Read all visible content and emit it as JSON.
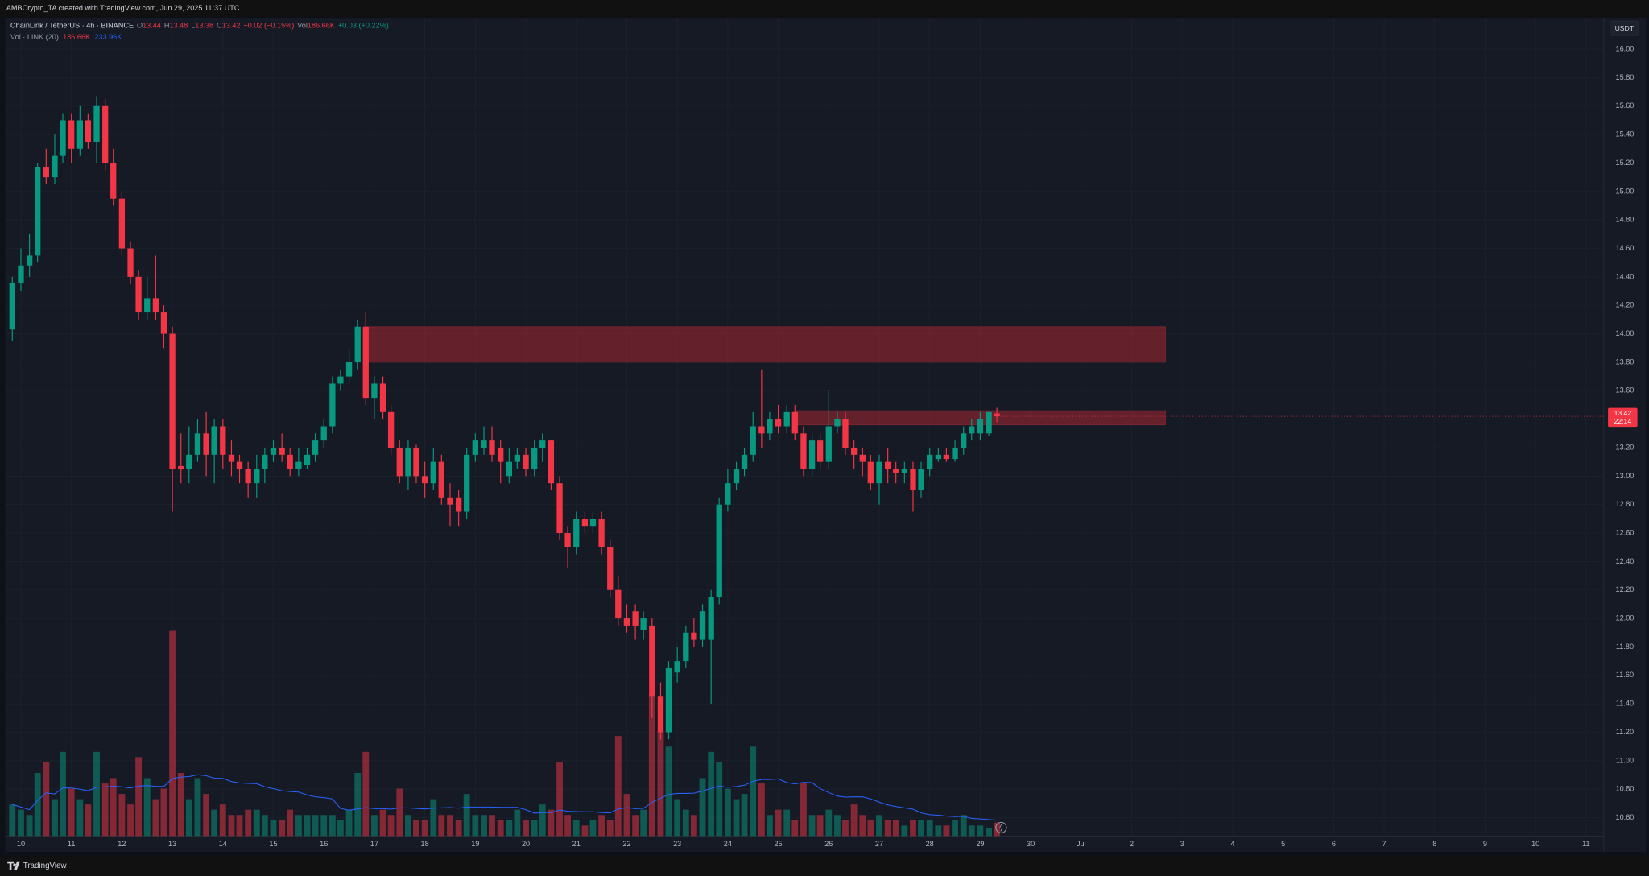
{
  "header": {
    "caption": "AMBCrypto_TA created with TradingView.com, Jun 29, 2025 11:37 UTC"
  },
  "footer": {
    "brand": "TradingView"
  },
  "chart_data": {
    "type": "candlestick",
    "legend": {
      "symbol": "ChainLink / TetherUS · 4h · BINANCE",
      "items": [
        {
          "key": "O",
          "text": "13.44"
        },
        {
          "key": "H",
          "text": "13.48"
        },
        {
          "key": "L",
          "text": "13.38"
        },
        {
          "key": "C",
          "text": "13.42"
        }
      ],
      "change": "−0.02 (−0.15%)",
      "volume_key": "Vol",
      "volume_text": "186.66K",
      "volume_change": "+0.03 (+0.22%)"
    },
    "volume_legend": {
      "name": "Vol · LINK (20)",
      "volume_text": "186.66K",
      "ma_text": "233.96K"
    },
    "currency": "USDT",
    "last_price_label": "13.42",
    "countdown": "22:14",
    "x": [
      9.83,
      10,
      10.17,
      10.33,
      10.5,
      10.67,
      10.83,
      11,
      11.17,
      11.33,
      11.5,
      11.67,
      11.83,
      12,
      12.17,
      12.33,
      12.5,
      12.67,
      12.83,
      13,
      13.17,
      13.33,
      13.5,
      13.67,
      13.83,
      14,
      14.17,
      14.33,
      14.5,
      14.67,
      14.83,
      15,
      15.17,
      15.33,
      15.5,
      15.67,
      15.83,
      16,
      16.17,
      16.33,
      16.5,
      16.67,
      16.83,
      17,
      17.17,
      17.33,
      17.5,
      17.67,
      17.83,
      18,
      18.17,
      18.33,
      18.5,
      18.67,
      18.83,
      19,
      19.17,
      19.33,
      19.5,
      19.67,
      19.83,
      20,
      20.17,
      20.33,
      20.5,
      20.67,
      20.83,
      21,
      21.17,
      21.33,
      21.5,
      21.67,
      21.83,
      22,
      22.17,
      22.33,
      22.5,
      22.67,
      22.83,
      23,
      23.17,
      23.33,
      23.5,
      23.67,
      23.83,
      24,
      24.17,
      24.33,
      24.5,
      24.67,
      24.83,
      25,
      25.17,
      25.33,
      25.5,
      25.67,
      25.83,
      26,
      26.17,
      26.33,
      26.5,
      26.67,
      26.83,
      27,
      27.17,
      27.33,
      27.5,
      27.67,
      27.83,
      28,
      28.17,
      28.33,
      28.5,
      28.67,
      28.83,
      29,
      29.17,
      29.33
    ],
    "open": [
      14.03,
      14.36,
      14.48,
      14.55,
      15.17,
      15.1,
      15.25,
      15.5,
      15.3,
      15.5,
      15.35,
      15.6,
      15.2,
      14.95,
      14.6,
      14.4,
      14.15,
      14.25,
      14.15,
      14.0,
      13.07,
      13.05,
      13.15,
      13.3,
      13.15,
      13.35,
      13.15,
      13.1,
      13.05,
      12.95,
      13.05,
      13.15,
      13.2,
      13.15,
      13.05,
      13.08,
      13.15,
      13.25,
      13.35,
      13.65,
      13.7,
      13.8,
      14.05,
      13.55,
      13.65,
      13.45,
      13.2,
      13.0,
      13.2,
      13.0,
      12.95,
      13.1,
      12.85,
      12.85,
      12.75,
      13.15,
      13.2,
      13.25,
      13.2,
      13.0,
      13.1,
      13.15,
      13.05,
      13.2,
      13.25,
      12.95,
      12.6,
      12.5,
      12.7,
      12.65,
      12.7,
      12.5,
      12.2,
      12.0,
      12.05,
      11.92,
      11.95,
      11.45,
      11.2,
      11.62,
      11.7,
      11.9,
      11.85,
      11.85,
      12.15,
      12.8,
      12.95,
      13.05,
      13.15,
      13.35,
      13.3,
      13.4,
      13.35,
      13.45,
      13.3,
      13.05,
      13.25,
      13.1,
      13.35,
      13.4,
      13.2,
      13.15,
      13.1,
      12.95,
      13.1,
      13.05,
      13.02,
      13.05,
      12.9,
      13.05,
      13.12,
      13.15,
      13.12,
      13.2,
      13.3,
      13.3,
      13.3,
      13.44
    ],
    "high": [
      14.4,
      14.6,
      14.7,
      15.2,
      15.3,
      15.4,
      15.55,
      15.55,
      15.6,
      15.55,
      15.67,
      15.65,
      15.3,
      15.0,
      14.65,
      14.45,
      14.4,
      14.55,
      14.2,
      14.05,
      13.3,
      13.35,
      13.4,
      13.45,
      13.4,
      13.4,
      13.25,
      13.15,
      13.1,
      13.15,
      13.2,
      13.25,
      13.3,
      13.2,
      13.2,
      13.2,
      13.3,
      13.4,
      13.7,
      13.75,
      13.9,
      14.1,
      14.15,
      13.7,
      13.7,
      13.5,
      13.25,
      13.25,
      13.22,
      13.1,
      13.2,
      13.15,
      12.95,
      12.9,
      13.2,
      13.3,
      13.35,
      13.35,
      13.25,
      13.2,
      13.2,
      13.2,
      13.25,
      13.3,
      13.25,
      13.0,
      12.65,
      12.75,
      12.75,
      12.75,
      12.75,
      12.55,
      12.3,
      12.1,
      12.1,
      12.05,
      12.0,
      11.55,
      11.7,
      11.8,
      11.95,
      12.0,
      12.1,
      12.2,
      12.85,
      13.05,
      13.1,
      13.2,
      13.45,
      13.75,
      13.45,
      13.5,
      13.5,
      13.5,
      13.35,
      13.3,
      13.3,
      13.6,
      13.45,
      13.45,
      13.25,
      13.2,
      13.15,
      13.15,
      13.2,
      13.1,
      13.1,
      13.1,
      13.1,
      13.2,
      13.2,
      13.2,
      13.25,
      13.35,
      13.4,
      13.45,
      13.45,
      13.48
    ],
    "low": [
      13.95,
      14.3,
      14.4,
      14.5,
      15.05,
      15.05,
      15.2,
      15.2,
      15.25,
      15.3,
      15.2,
      15.15,
      14.9,
      14.55,
      14.35,
      14.1,
      14.1,
      14.1,
      13.9,
      12.75,
      12.95,
      12.95,
      13.1,
      13.0,
      12.95,
      13.05,
      13.0,
      12.95,
      12.85,
      12.85,
      12.95,
      13.1,
      13.1,
      13.0,
      13.0,
      13.05,
      13.1,
      13.2,
      13.3,
      13.6,
      13.65,
      13.75,
      13.5,
      13.4,
      13.4,
      13.15,
      12.95,
      12.9,
      12.95,
      12.85,
      12.9,
      12.8,
      12.65,
      12.65,
      12.7,
      13.1,
      13.15,
      13.1,
      12.95,
      12.95,
      13.05,
      13.0,
      13.0,
      13.1,
      12.9,
      12.55,
      12.35,
      12.45,
      12.6,
      12.6,
      12.45,
      12.15,
      11.95,
      11.9,
      11.85,
      11.85,
      11.3,
      11.15,
      11.15,
      11.55,
      11.65,
      11.8,
      11.8,
      11.4,
      12.1,
      12.75,
      12.9,
      13.0,
      13.1,
      13.2,
      13.25,
      13.3,
      13.3,
      13.25,
      13.0,
      13.0,
      13.05,
      13.05,
      13.3,
      13.15,
      13.05,
      13.0,
      12.9,
      12.8,
      12.95,
      12.95,
      12.95,
      12.75,
      12.85,
      13.0,
      13.1,
      13.1,
      13.1,
      13.15,
      13.25,
      13.25,
      13.28,
      13.38
    ],
    "close": [
      14.36,
      14.48,
      14.55,
      15.17,
      15.1,
      15.25,
      15.5,
      15.3,
      15.5,
      15.35,
      15.6,
      15.2,
      14.95,
      14.6,
      14.4,
      14.15,
      14.25,
      14.15,
      14.0,
      13.05,
      13.05,
      13.15,
      13.3,
      13.15,
      13.35,
      13.15,
      13.1,
      13.05,
      12.95,
      13.05,
      13.15,
      13.2,
      13.15,
      13.05,
      13.1,
      13.15,
      13.25,
      13.35,
      13.65,
      13.7,
      13.8,
      14.05,
      13.55,
      13.65,
      13.45,
      13.2,
      13.0,
      13.2,
      13.0,
      12.95,
      13.1,
      12.85,
      12.8,
      12.75,
      13.15,
      13.25,
      13.25,
      13.15,
      13.1,
      13.1,
      13.15,
      13.05,
      13.2,
      13.25,
      12.95,
      12.6,
      12.5,
      12.7,
      12.65,
      12.7,
      12.5,
      12.2,
      12.0,
      11.95,
      11.95,
      12.0,
      11.45,
      11.2,
      11.65,
      11.7,
      11.9,
      11.85,
      12.05,
      12.15,
      12.8,
      12.95,
      13.05,
      13.15,
      13.35,
      13.3,
      13.4,
      13.35,
      13.45,
      13.3,
      13.05,
      13.25,
      13.1,
      13.35,
      13.4,
      13.2,
      13.15,
      13.1,
      12.95,
      13.1,
      13.05,
      13.02,
      13.05,
      12.9,
      13.05,
      13.15,
      13.15,
      13.12,
      13.2,
      13.3,
      13.35,
      13.4,
      13.45,
      13.42
    ],
    "volume": [
      435,
      363,
      290,
      870,
      1015,
      508,
      1160,
      653,
      508,
      435,
      1160,
      725,
      798,
      580,
      435,
      1088,
      798,
      508,
      653,
      2828,
      870,
      508,
      798,
      580,
      363,
      435,
      290,
      290,
      363,
      363,
      290,
      218,
      218,
      363,
      290,
      290,
      290,
      290,
      290,
      218,
      363,
      870,
      1160,
      290,
      363,
      290,
      653,
      290,
      218,
      218,
      508,
      290,
      290,
      218,
      580,
      290,
      290,
      290,
      218,
      218,
      363,
      218,
      218,
      435,
      363,
      1015,
      290,
      218,
      145,
      218,
      290,
      218,
      1378,
      580,
      290,
      363,
      1958,
      1450,
      1233,
      508,
      363,
      290,
      798,
      1160,
      1015,
      653,
      508,
      580,
      1233,
      725,
      290,
      363,
      363,
      218,
      725,
      290,
      290,
      363,
      290,
      218,
      435,
      290,
      218,
      290,
      218,
      218,
      145,
      218,
      218,
      218,
      145,
      145,
      218,
      290,
      145,
      145,
      116,
      186.66
    ],
    "volume_ylim": [
      0,
      3000
    ],
    "ma_period": 20,
    "ma_color": "#2962ff",
    "up_color": "#089981",
    "down_color": "#f23645",
    "volume_up_color": "rgba(8,153,129,0.5)",
    "volume_down_color": "rgba(242,54,69,0.5)",
    "zones": [
      {
        "x": [
          16.83,
          32.67
        ],
        "y": [
          13.8,
          14.05
        ],
        "color": "rgba(178,40,51,0.5)"
      },
      {
        "x": [
          25.33,
          32.67
        ],
        "y": [
          13.36,
          13.46
        ],
        "color": "rgba(178,40,51,0.5)"
      }
    ],
    "xlim": [
      9.69,
      41.35
    ],
    "xticks": [
      10,
      11,
      12,
      13,
      14,
      15,
      16,
      17,
      18,
      19,
      20,
      21,
      22,
      23,
      24,
      25,
      26,
      27,
      28,
      29,
      30,
      {
        "value": 31,
        "label": "Jul"
      },
      {
        "value": 32,
        "label": "2"
      },
      {
        "value": 33,
        "label": "3"
      },
      {
        "value": 34,
        "label": "4"
      },
      {
        "value": 35,
        "label": "5"
      },
      {
        "value": 36,
        "label": "6"
      },
      {
        "value": 37,
        "label": "7"
      },
      {
        "value": 38,
        "label": "8"
      },
      {
        "value": 39,
        "label": "9"
      },
      {
        "value": 40,
        "label": "10"
      },
      {
        "value": 41,
        "label": "11"
      }
    ],
    "ylim": [
      10.36,
      16.22
    ],
    "yticks": [
      {
        "value": 16,
        "label": "16.00"
      },
      {
        "value": 15.8,
        "label": "15.80"
      },
      {
        "value": 15.6,
        "label": "15.60"
      },
      {
        "value": 15.4,
        "label": "15.40"
      },
      {
        "value": 15.2,
        "label": "15.20"
      },
      {
        "value": 15,
        "label": "15.00"
      },
      {
        "value": 14.8,
        "label": "14.80"
      },
      {
        "value": 14.6,
        "label": "14.60"
      },
      {
        "value": 14.4,
        "label": "14.40"
      },
      {
        "value": 14.2,
        "label": "14.20"
      },
      {
        "value": 14,
        "label": "14.00"
      },
      {
        "value": 13.8,
        "label": "13.80"
      },
      {
        "value": 13.6,
        "label": "13.60"
      },
      {
        "value": 13.4,
        "label": "13.40"
      },
      {
        "value": 13.2,
        "label": "13.20"
      },
      {
        "value": 13,
        "label": "13.00"
      },
      {
        "value": 12.8,
        "label": "12.80"
      },
      {
        "value": 12.6,
        "label": "12.60"
      },
      {
        "value": 12.4,
        "label": "12.40"
      },
      {
        "value": 12.2,
        "label": "12.20"
      },
      {
        "value": 12,
        "label": "12.00"
      },
      {
        "value": 11.8,
        "label": "11.80"
      },
      {
        "value": 11.6,
        "label": "11.60"
      },
      {
        "value": 11.4,
        "label": "11.40"
      },
      {
        "value": 11.2,
        "label": "11.20"
      },
      {
        "value": 11,
        "label": "11.00"
      },
      {
        "value": 10.8,
        "label": "10.80"
      },
      {
        "value": 10.6,
        "label": "10.60"
      }
    ],
    "grid": true
  }
}
